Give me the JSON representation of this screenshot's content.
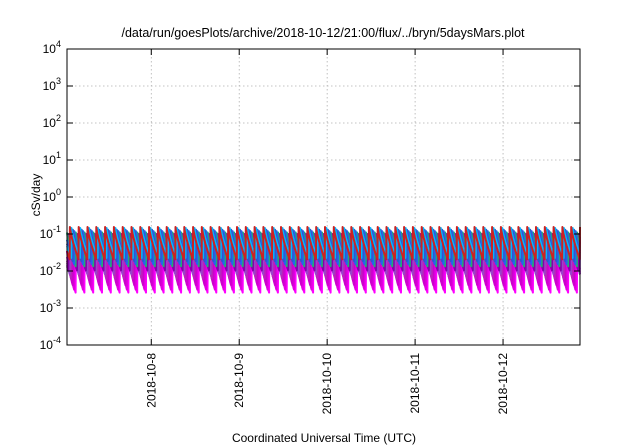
{
  "chart_data": {
    "type": "line",
    "title": "/data/run/goesPlots/archive/2018-10-12/21:00/flux/../bryn/5daysMars.plot",
    "xlabel": "Coordinated Universal Time (UTC)",
    "ylabel": "cSv/day",
    "yscale": "log",
    "ylim": [
      0.0001,
      10000
    ],
    "y_ticks": [
      {
        "base": "10",
        "exp": "-4"
      },
      {
        "base": "10",
        "exp": "-3"
      },
      {
        "base": "10",
        "exp": "-2"
      },
      {
        "base": "10",
        "exp": "-1"
      },
      {
        "base": "10",
        "exp": "0"
      },
      {
        "base": "10",
        "exp": "1"
      },
      {
        "base": "10",
        "exp": "2"
      },
      {
        "base": "10",
        "exp": "3"
      },
      {
        "base": "10",
        "exp": "4"
      }
    ],
    "xlim": [
      "2018-10-07T01:00",
      "2018-10-12T21:00"
    ],
    "x_ticks": [
      "2018-10-8",
      "2018-10-9",
      "2018-10-10",
      "2018-10-11",
      "2018-10-12"
    ],
    "grid": true,
    "pattern": {
      "cycle_hours": 2.4,
      "lag_hours": 0.8
    },
    "series": [
      {
        "color": "#ff00ff",
        "max": 0.035,
        "min": 0.0025
      },
      {
        "color": "#e000e0",
        "max": 0.05,
        "min": 0.003
      },
      {
        "color": "#cc00cc",
        "max": 0.065,
        "min": 0.004
      },
      {
        "color": "#bb22bb",
        "max": 0.075,
        "min": 0.006
      },
      {
        "color": "#9944cc",
        "max": 0.085,
        "min": 0.008
      },
      {
        "color": "#8800aa",
        "max": 0.1,
        "min": 0.01
      },
      {
        "color": "#22aa77",
        "max": 0.11,
        "min": 0.013
      },
      {
        "color": "#2266ee",
        "max": 0.12,
        "min": 0.015
      },
      {
        "color": "#3355cc",
        "max": 0.13,
        "min": 0.018
      },
      {
        "color": "#00b8ff",
        "max": 0.145,
        "min": 0.022
      },
      {
        "color": "#cc2222",
        "max": 0.155,
        "min": 0.02
      }
    ]
  }
}
